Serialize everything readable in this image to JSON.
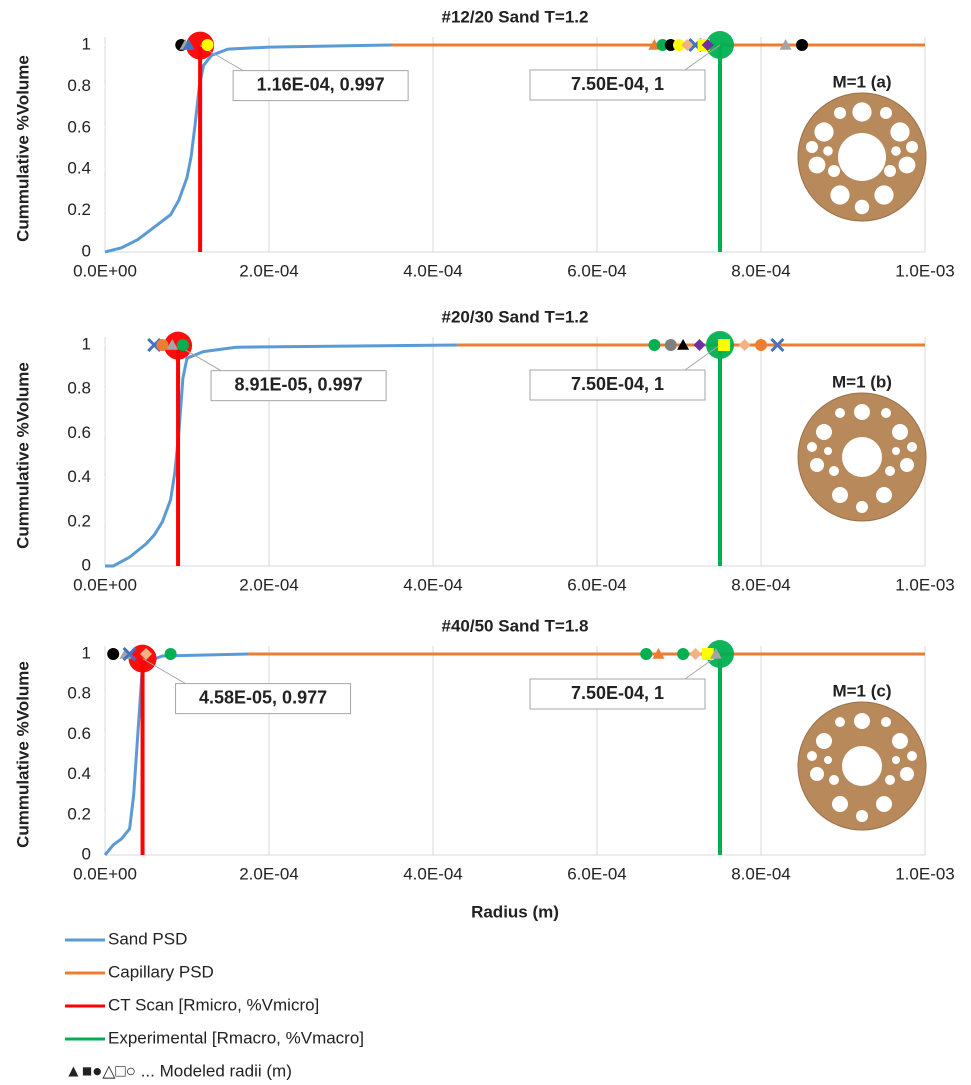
{
  "chart_data": [
    {
      "type": "line",
      "title": "#12/20 Sand T=1.2",
      "y_label": "Cummulative %Volume",
      "inset_label": "M=1 (a)",
      "xlim": [
        0,
        0.001
      ],
      "xticks": [
        {
          "value": 0,
          "label": "0.0E+00"
        },
        {
          "value": 0.0002,
          "label": "2.0E-04"
        },
        {
          "value": 0.0004,
          "label": "4.0E-04"
        },
        {
          "value": 0.0006,
          "label": "6.0E-04"
        },
        {
          "value": 0.0008,
          "label": "8.0E-04"
        },
        {
          "value": 0.001,
          "label": "1.0E-03"
        }
      ],
      "ylim": [
        0,
        1
      ],
      "yticks": [
        0,
        0.2,
        0.4,
        0.6,
        0.8,
        1
      ],
      "grid": "x",
      "legend": "bottom",
      "series": [
        {
          "name": "Sand PSD",
          "color": "#5b9bd5",
          "x": [
            0,
            2e-05,
            4e-05,
            6e-05,
            8e-05,
            9e-05,
            0.0001,
            0.000105,
            0.00011,
            0.000115,
            0.00012,
            0.00013,
            0.00015,
            0.0002,
            0.00035
          ],
          "values": [
            0,
            0.02,
            0.06,
            0.12,
            0.18,
            0.25,
            0.36,
            0.46,
            0.62,
            0.8,
            0.9,
            0.95,
            0.98,
            0.99,
            1
          ]
        },
        {
          "name": "Capillary PSD",
          "color": "#ed7d31",
          "x": [
            0.00035,
            0.001
          ],
          "values": [
            1,
            1
          ]
        },
        {
          "name": "CT Scan [Rmicro, %Vmicro]",
          "color": "#ff0000",
          "x": [
            0.000116,
            0.000116
          ],
          "values": [
            0,
            0.997
          ],
          "value_labels": [
            null,
            "1.16E-04, 0.997"
          ]
        },
        {
          "name": "Experimental [Rmacro, %Vmacro]",
          "color": "#00b050",
          "x": [
            0.00075,
            0.00075
          ],
          "values": [
            0,
            1
          ],
          "value_labels": [
            null,
            "7.50E-04, 1"
          ]
        },
        {
          "name": "▲■●△□○ ... Modeled radii (m)",
          "type": "scatter",
          "x": [
            9.3e-05,
            9.8e-05,
            0.000102,
            0.000125,
            0.00067,
            0.00068,
            0.00069,
            0.0007,
            0.00071,
            0.00072,
            0.00073,
            0.000735,
            0.00083,
            0.00085
          ],
          "values": [
            1,
            1,
            1,
            1,
            1,
            1,
            1,
            1,
            1,
            1,
            1,
            1,
            1,
            1
          ],
          "shapes": [
            "circle",
            "triangle",
            "triangle",
            "circle",
            "triangle",
            "circle",
            "circle",
            "circle",
            "diamond",
            "x",
            "square",
            "diamond",
            "triangle",
            "circle"
          ],
          "colors": [
            "#000000",
            "#a5a5a5",
            "#4472c4",
            "#ffff00",
            "#ed7d31",
            "#00b050",
            "#000000",
            "#ffff00",
            "#f4b183",
            "#4472c4",
            "#ffff00",
            "#7030a0",
            "#a5a5a5",
            "#000000"
          ]
        }
      ]
    },
    {
      "type": "line",
      "title": "#20/30 Sand T=1.2",
      "y_label": "Cummulative %Volume",
      "inset_label": "M=1 (b)",
      "xlim": [
        0,
        0.001
      ],
      "xticks": [
        {
          "value": 0,
          "label": "0.0E+00"
        },
        {
          "value": 0.0002,
          "label": "2.0E-04"
        },
        {
          "value": 0.0004,
          "label": "4.0E-04"
        },
        {
          "value": 0.0006,
          "label": "6.0E-04"
        },
        {
          "value": 0.0008,
          "label": "8.0E-04"
        },
        {
          "value": 0.001,
          "label": "1.0E-03"
        }
      ],
      "ylim": [
        0,
        1
      ],
      "yticks": [
        0,
        0.2,
        0.4,
        0.6,
        0.8,
        1
      ],
      "grid": "x",
      "series": [
        {
          "color": "#5b9bd5",
          "x": [
            0,
            1e-05,
            3e-05,
            5e-05,
            6e-05,
            7e-05,
            8e-05,
            8.5e-05,
            9e-05,
            9.5e-05,
            0.0001,
            0.00012,
            0.00016,
            0.00043
          ],
          "values": [
            0,
            0,
            0.04,
            0.1,
            0.14,
            0.2,
            0.3,
            0.42,
            0.6,
            0.85,
            0.94,
            0.97,
            0.99,
            1
          ]
        },
        {
          "color": "#ed7d31",
          "x": [
            0.00043,
            0.001
          ],
          "values": [
            1,
            1
          ]
        },
        {
          "color": "#ff0000",
          "x": [
            8.91e-05,
            8.91e-05
          ],
          "values": [
            0,
            0.997
          ],
          "value_labels": [
            null,
            "8.91E-05, 0.997"
          ]
        },
        {
          "color": "#00b050",
          "x": [
            0.00075,
            0.00075
          ],
          "values": [
            0,
            1
          ],
          "value_labels": [
            null,
            "7.50E-04, 1"
          ]
        },
        {
          "type": "scatter",
          "x": [
            6e-05,
            7e-05,
            8.2e-05,
            9.5e-05,
            0.00067,
            0.00069,
            0.000705,
            0.000725,
            0.000755,
            0.00078,
            0.0008,
            0.00082
          ],
          "values": [
            1,
            1,
            1,
            1,
            1,
            1,
            1,
            1,
            1,
            1,
            1,
            1
          ],
          "shapes": [
            "x",
            "circle",
            "triangle",
            "circle",
            "circle",
            "circle",
            "triangle",
            "diamond",
            "square",
            "diamond",
            "circle",
            "x"
          ],
          "colors": [
            "#4472c4",
            "#ed7d31",
            "#a5a5a5",
            "#00b050",
            "#00b050",
            "#7f7f7f",
            "#000000",
            "#7030a0",
            "#ffff00",
            "#f4b183",
            "#ed7d31",
            "#4472c4"
          ]
        }
      ]
    },
    {
      "type": "line",
      "title": "#40/50 Sand T=1.8",
      "y_label": "Cummulative %Volume",
      "x_label": "Radius (m)",
      "inset_label": "M=1 (c)",
      "xlim": [
        0,
        0.001
      ],
      "xticks": [
        {
          "value": 0,
          "label": "0.0E+00"
        },
        {
          "value": 0.0002,
          "label": "2.0E-04"
        },
        {
          "value": 0.0004,
          "label": "4.0E-04"
        },
        {
          "value": 0.0006,
          "label": "6.0E-04"
        },
        {
          "value": 0.0008,
          "label": "8.0E-04"
        },
        {
          "value": 0.001,
          "label": "1.0E-03"
        }
      ],
      "ylim": [
        0,
        1
      ],
      "yticks": [
        0,
        0.2,
        0.4,
        0.6,
        0.8,
        1
      ],
      "grid": "x",
      "series": [
        {
          "color": "#5b9bd5",
          "x": [
            0,
            1e-05,
            2e-05,
            3e-05,
            3.5e-05,
            4e-05,
            4.5e-05,
            5e-05,
            7e-05,
            0.000175
          ],
          "values": [
            0,
            0.05,
            0.08,
            0.13,
            0.3,
            0.6,
            0.9,
            0.96,
            0.99,
            1
          ]
        },
        {
          "color": "#ed7d31",
          "x": [
            0.000175,
            0.001
          ],
          "values": [
            1,
            1
          ]
        },
        {
          "color": "#ff0000",
          "x": [
            4.58e-05,
            4.58e-05
          ],
          "values": [
            0,
            0.977
          ],
          "value_labels": [
            null,
            "4.58E-05, 0.977"
          ]
        },
        {
          "color": "#00b050",
          "x": [
            0.00075,
            0.00075
          ],
          "values": [
            0,
            1
          ],
          "value_labels": [
            null,
            "7.50E-04, 1"
          ]
        },
        {
          "type": "scatter",
          "x": [
            1e-05,
            2.5e-05,
            3e-05,
            5e-05,
            8e-05,
            0.00066,
            0.000675,
            0.000705,
            0.00072,
            0.000735,
            0.000745
          ],
          "values": [
            1,
            1,
            1,
            1,
            1,
            1,
            1,
            1,
            1,
            1,
            1
          ],
          "shapes": [
            "circle",
            "triangle",
            "x",
            "diamond",
            "circle",
            "circle",
            "triangle",
            "circle",
            "diamond",
            "square",
            "triangle"
          ],
          "colors": [
            "#000000",
            "#a5a5a5",
            "#4472c4",
            "#f4b183",
            "#00b050",
            "#00b050",
            "#ed7d31",
            "#00b050",
            "#f4b183",
            "#ffff00",
            "#a5a5a5"
          ]
        }
      ]
    }
  ]
}
